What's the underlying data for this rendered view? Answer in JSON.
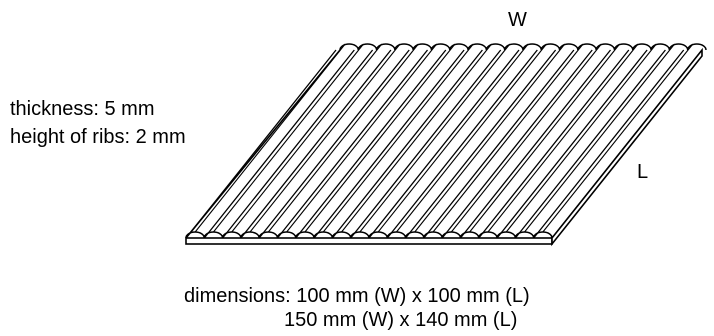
{
  "labels": {
    "width": "W",
    "length": "L",
    "thickness": "thickness: 5 mm",
    "rib_height": "height of ribs: 2 mm"
  },
  "dimensions": {
    "prefix": "dimensions:",
    "options": [
      "100 mm (W) x 100 mm (L)",
      "150 mm (W) x 140 mm (L)"
    ]
  },
  "illustration": {
    "subject": "ribbed sheet",
    "rib_count": 20,
    "line_color": "#000000",
    "fill_color": "#ffffff"
  }
}
